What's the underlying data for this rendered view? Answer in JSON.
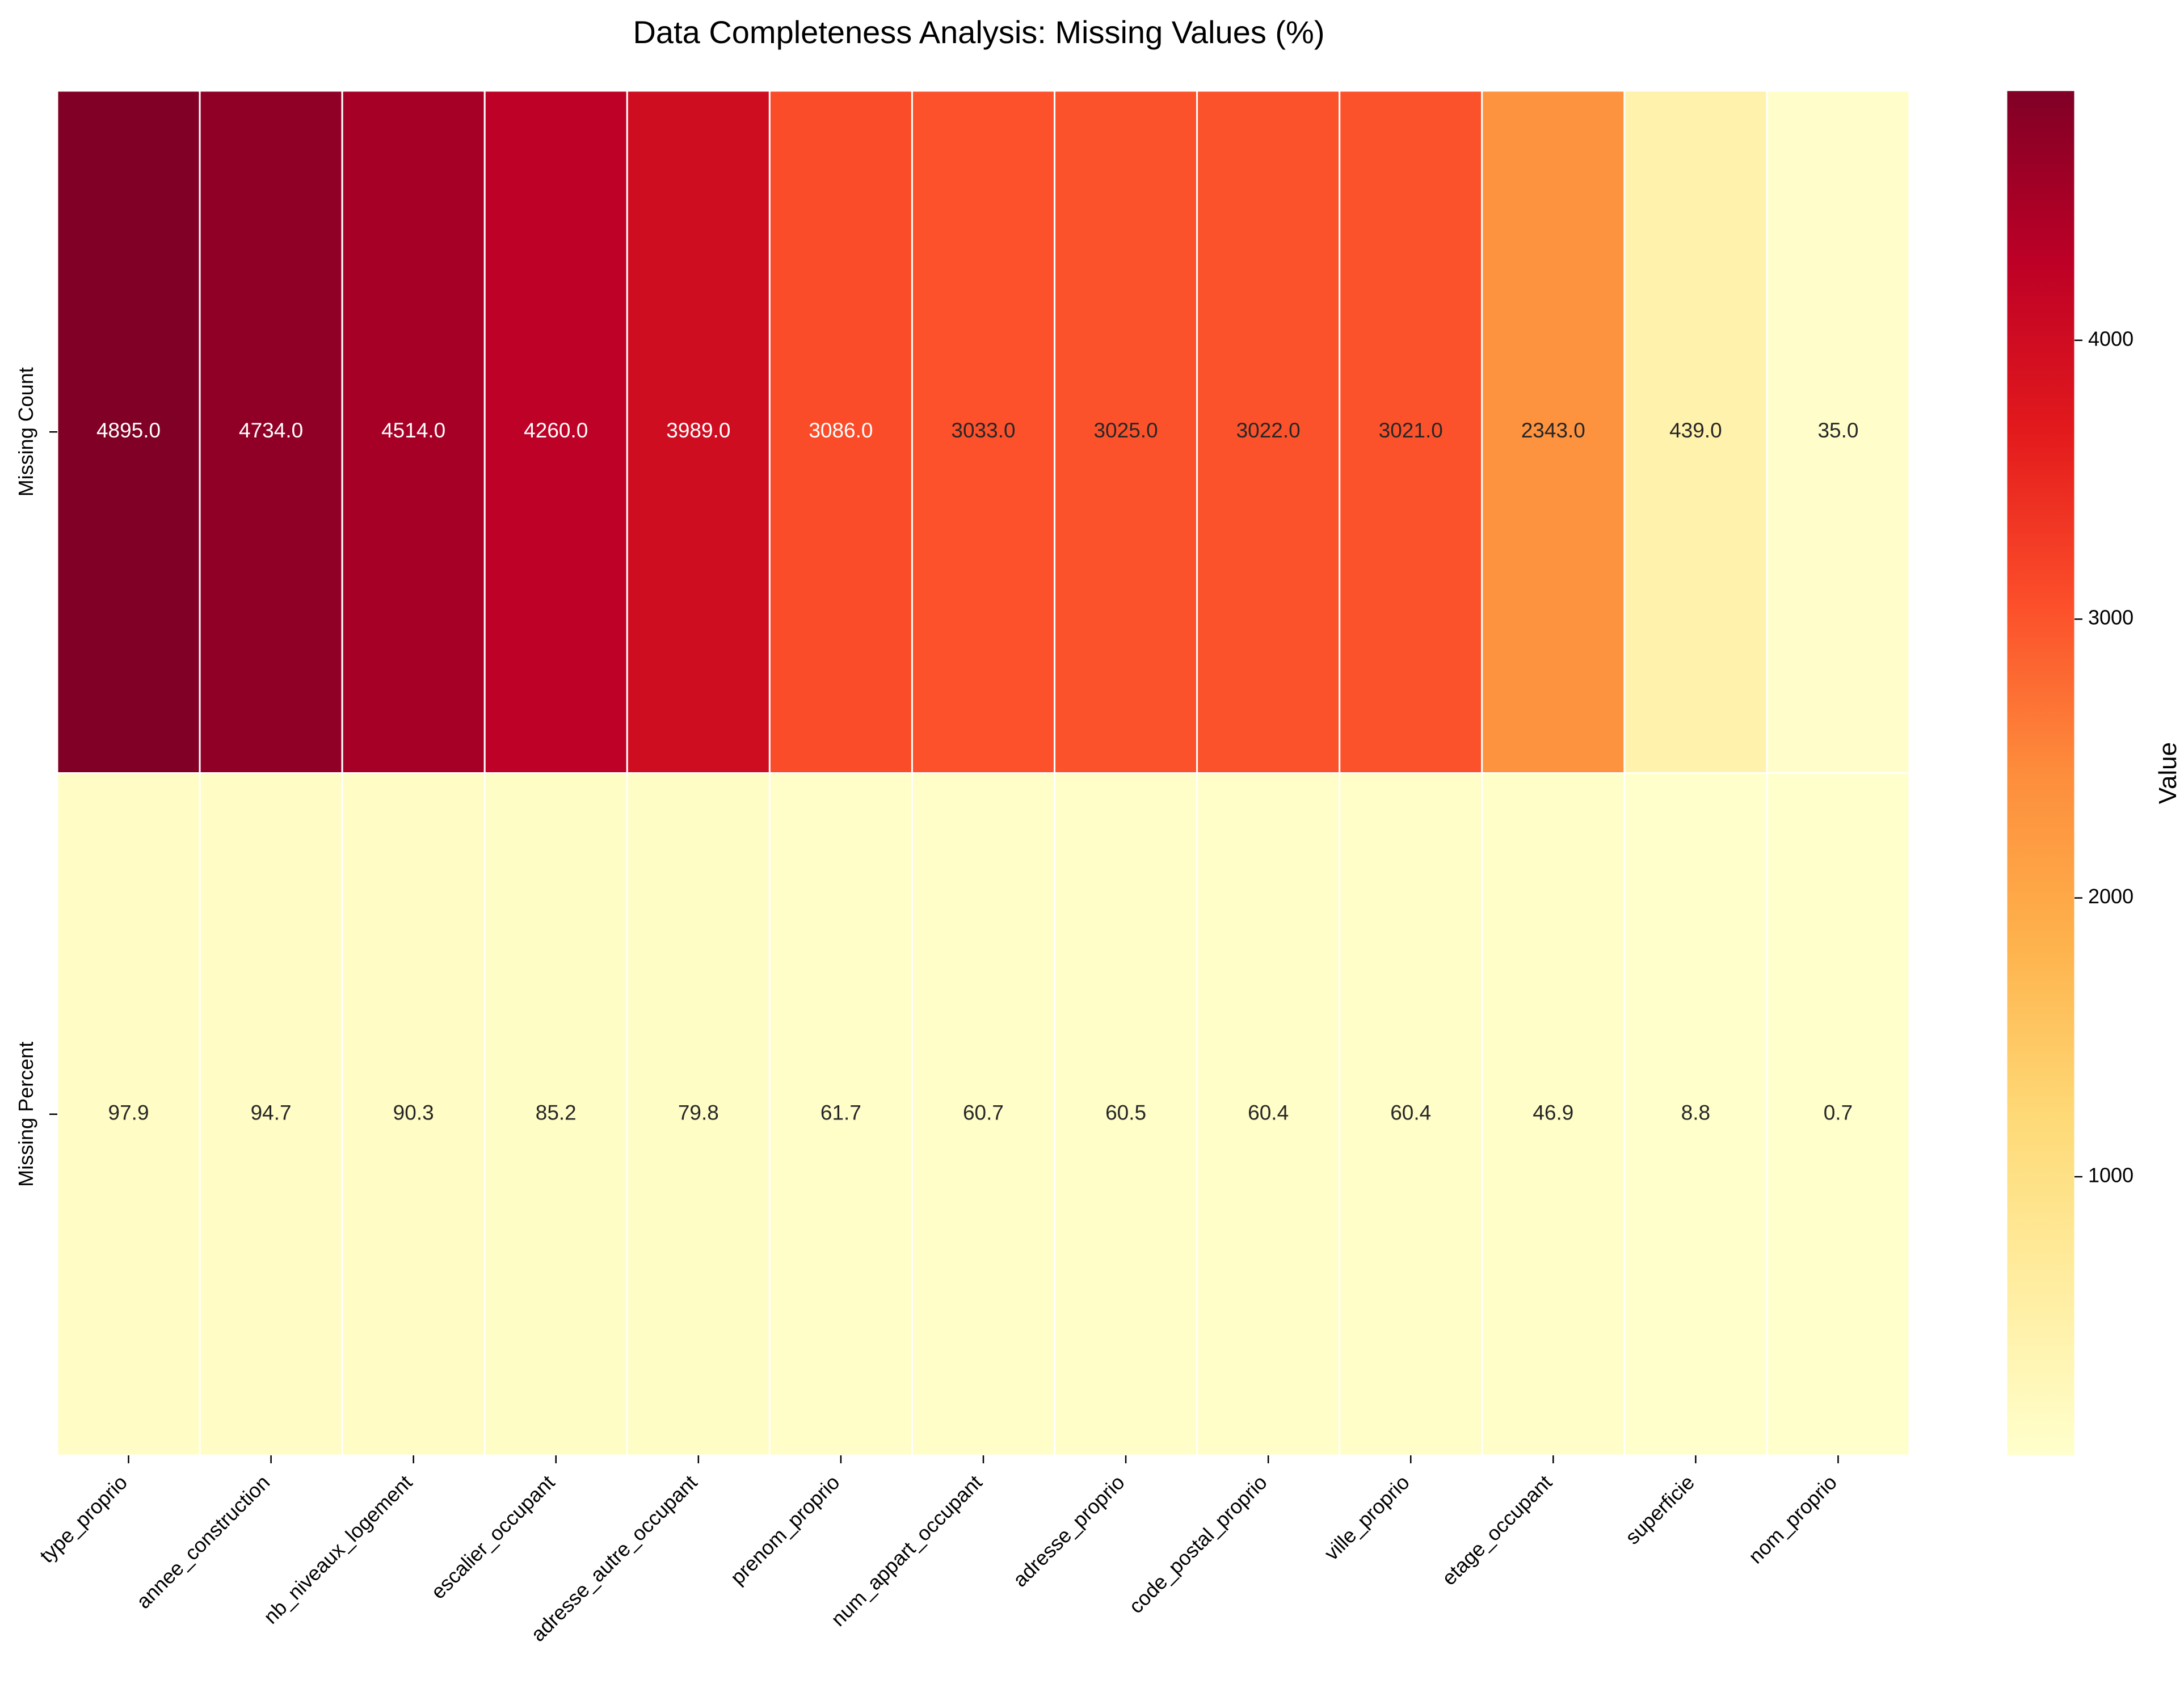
{
  "chart_data": {
    "type": "heatmap",
    "title": "Data Completeness Analysis: Missing Values (%)",
    "columns": [
      "type_proprio",
      "annee_construction",
      "nb_niveaux_logement",
      "escalier_occupant",
      "adresse_autre_occupant",
      "prenom_proprio",
      "num_appart_occupant",
      "adresse_proprio",
      "code_postal_proprio",
      "ville_proprio",
      "etage_occupant",
      "superficie",
      "nom_proprio"
    ],
    "rows": [
      "Missing Count",
      "Missing Percent"
    ],
    "values": [
      [
        4895.0,
        4734.0,
        4514.0,
        4260.0,
        3989.0,
        3086.0,
        3033.0,
        3025.0,
        3022.0,
        3021.0,
        2343.0,
        439.0,
        35.0
      ],
      [
        97.9,
        94.7,
        90.3,
        85.2,
        79.8,
        61.7,
        60.7,
        60.5,
        60.4,
        60.4,
        46.9,
        8.8,
        0.7
      ]
    ],
    "value_labels": [
      [
        "4895.0",
        "4734.0",
        "4514.0",
        "4260.0",
        "3989.0",
        "3086.0",
        "3033.0",
        "3025.0",
        "3022.0",
        "3021.0",
        "2343.0",
        "439.0",
        "35.0"
      ],
      [
        "97.9",
        "94.7",
        "90.3",
        "85.2",
        "79.8",
        "61.7",
        "60.7",
        "60.5",
        "60.4",
        "60.4",
        "46.9",
        "8.8",
        "0.7"
      ]
    ],
    "colormap": "YlOrRd",
    "colorbar": {
      "label": "Value",
      "range": [
        0.7,
        4895.0
      ],
      "ticks": [
        1000,
        2000,
        3000,
        4000
      ],
      "tick_labels": [
        "1000",
        "2000",
        "3000",
        "4000"
      ]
    }
  }
}
